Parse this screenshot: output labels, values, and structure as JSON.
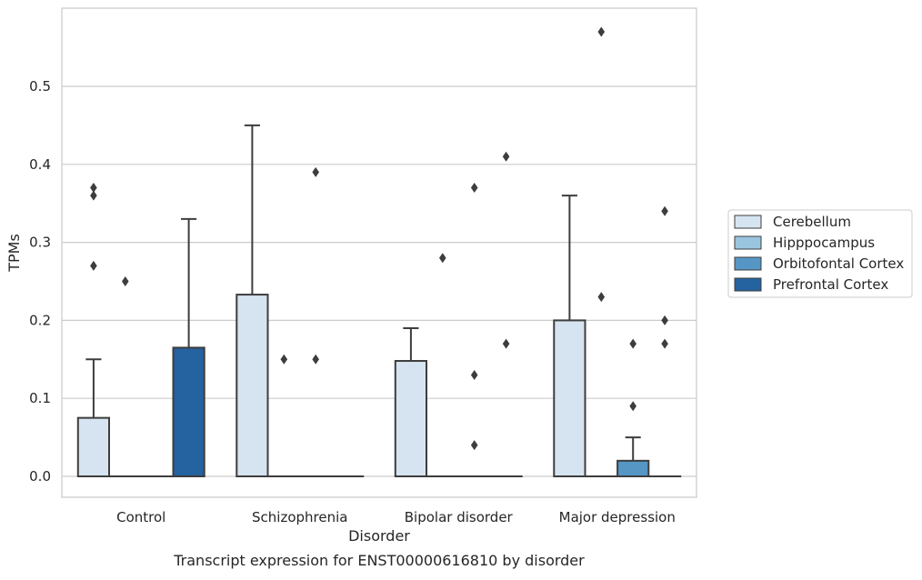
{
  "chart_data": {
    "type": "box",
    "title": "",
    "caption": "Transcript expression for ENST00000616810 by disorder",
    "xlabel": "Disorder",
    "ylabel": "TPMs",
    "ylim": [
      -0.028,
      0.6
    ],
    "yticks": [
      "0.0",
      "0.1",
      "0.2",
      "0.3",
      "0.4",
      "0.5"
    ],
    "grid": "horizontal",
    "legend_position": "right",
    "categories": [
      "Control",
      "Schizophrenia",
      "Bipolar disorder",
      "Major depression"
    ],
    "series": [
      {
        "name": "Cerebellum",
        "color": "#d6e4f1",
        "boxes": [
          {
            "q1": 0,
            "median": 0,
            "q3": 0.075,
            "whisker_low": 0,
            "whisker_high": 0.15,
            "outliers": [
              0.37,
              0.36,
              0.27
            ]
          },
          {
            "q1": 0,
            "median": 0,
            "q3": 0.233,
            "whisker_low": 0,
            "whisker_high": 0.45,
            "outliers": []
          },
          {
            "q1": 0,
            "median": 0,
            "q3": 0.148,
            "whisker_low": 0,
            "whisker_high": 0.19,
            "outliers": []
          },
          {
            "q1": 0,
            "median": 0,
            "q3": 0.2,
            "whisker_low": 0,
            "whisker_high": 0.36,
            "outliers": []
          }
        ]
      },
      {
        "name": "Hipppocampus",
        "color": "#9ac5df",
        "boxes": [
          {
            "q1": 0,
            "median": 0,
            "q3": 0,
            "whisker_low": 0,
            "whisker_high": 0,
            "outliers": [
              0.25
            ]
          },
          {
            "q1": 0,
            "median": 0,
            "q3": 0,
            "whisker_low": 0,
            "whisker_high": 0,
            "outliers": [
              0.15
            ]
          },
          {
            "q1": 0,
            "median": 0,
            "q3": 0,
            "whisker_low": 0,
            "whisker_high": 0,
            "outliers": [
              0.28
            ]
          },
          {
            "q1": 0,
            "median": 0,
            "q3": 0,
            "whisker_low": 0,
            "whisker_high": 0,
            "outliers": [
              0.57,
              0.23
            ]
          }
        ]
      },
      {
        "name": "Orbitofontal Cortex",
        "color": "#5596c5",
        "boxes": [
          {
            "q1": 0,
            "median": 0,
            "q3": 0,
            "whisker_low": 0,
            "whisker_high": 0,
            "outliers": []
          },
          {
            "q1": 0,
            "median": 0,
            "q3": 0,
            "whisker_low": 0,
            "whisker_high": 0,
            "outliers": [
              0.15,
              0.39
            ]
          },
          {
            "q1": 0,
            "median": 0,
            "q3": 0,
            "whisker_low": 0,
            "whisker_high": 0,
            "outliers": [
              0.37,
              0.13,
              0.04
            ]
          },
          {
            "q1": 0,
            "median": 0,
            "q3": 0.02,
            "whisker_low": 0,
            "whisker_high": 0.05,
            "outliers": [
              0.17,
              0.09
            ]
          }
        ]
      },
      {
        "name": "Prefrontal Cortex",
        "color": "#2562a0",
        "boxes": [
          {
            "q1": 0,
            "median": 0,
            "q3": 0.165,
            "whisker_low": 0,
            "whisker_high": 0.33,
            "outliers": []
          },
          {
            "q1": 0,
            "median": 0,
            "q3": 0,
            "whisker_low": 0,
            "whisker_high": 0,
            "outliers": []
          },
          {
            "q1": 0,
            "median": 0,
            "q3": 0,
            "whisker_low": 0,
            "whisker_high": 0,
            "outliers": [
              0.41,
              0.17
            ]
          },
          {
            "q1": 0,
            "median": 0,
            "q3": 0,
            "whisker_low": 0,
            "whisker_high": 0,
            "outliers": [
              0.34,
              0.2,
              0.17
            ]
          }
        ]
      }
    ]
  }
}
